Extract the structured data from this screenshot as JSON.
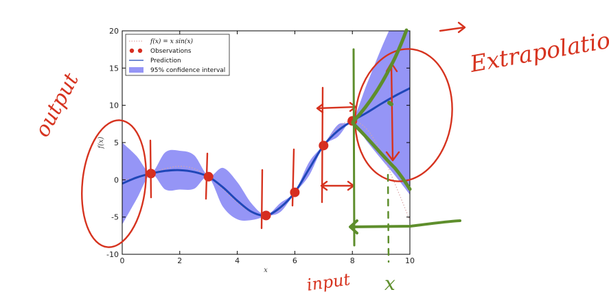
{
  "chart_data": {
    "type": "line",
    "title": "",
    "xlabel": "x",
    "ylabel": "f(x)",
    "xlim": [
      0,
      10
    ],
    "ylim": [
      -10,
      20
    ],
    "x_ticks": [
      "0",
      "2",
      "4",
      "6",
      "8",
      "10"
    ],
    "y_ticks": [
      "-10",
      "-5",
      "0",
      "5",
      "10",
      "15",
      "20"
    ],
    "legend": {
      "position": "top-left",
      "entries": [
        {
          "kind": "dotted-line",
          "label": "f(x) = x sin(x)"
        },
        {
          "kind": "markers",
          "label": "Observations"
        },
        {
          "kind": "line",
          "label": "Prediction"
        },
        {
          "kind": "band",
          "label": "95% confidence interval"
        }
      ]
    },
    "observations": {
      "x": [
        1,
        3,
        5,
        6,
        7,
        8
      ],
      "y": [
        0.84,
        0.42,
        -4.79,
        -1.68,
        4.6,
        7.91
      ]
    },
    "series": [
      {
        "name": "f(x) = x sin(x)",
        "style": "dotted",
        "x": [
          0,
          0.5,
          1,
          1.5,
          2,
          2.5,
          3,
          3.5,
          4,
          4.5,
          5,
          5.5,
          6,
          6.5,
          7,
          7.5,
          8,
          8.5,
          9,
          9.5,
          10
        ],
        "y": [
          0,
          0.24,
          0.84,
          1.5,
          1.82,
          1.5,
          0.42,
          -1.23,
          -3.03,
          -4.4,
          -4.79,
          -3.88,
          -1.68,
          1.39,
          4.6,
          7.04,
          7.91,
          6.8,
          3.71,
          -0.71,
          -5.44
        ]
      },
      {
        "name": "Prediction",
        "style": "solid",
        "x": [
          0,
          0.5,
          1,
          1.5,
          2,
          2.5,
          3,
          3.5,
          4,
          4.5,
          5,
          5.5,
          6,
          6.5,
          7,
          7.5,
          8,
          8.5,
          9,
          9.5,
          10
        ],
        "y": [
          -0.5,
          0.3,
          0.84,
          1.2,
          1.3,
          1.05,
          0.42,
          -1.0,
          -2.8,
          -4.3,
          -4.79,
          -3.7,
          -1.68,
          1.5,
          4.6,
          6.6,
          7.91,
          9.0,
          10.2,
          11.3,
          12.3
        ]
      }
    ],
    "confidence_interval": {
      "name": "95% confidence interval",
      "x": [
        0,
        0.5,
        1,
        1.5,
        2,
        2.5,
        3,
        3.5,
        4,
        4.5,
        5,
        5.5,
        6,
        6.5,
        7,
        7.5,
        8,
        8.5,
        9,
        9.5,
        10
      ],
      "lower": [
        -6.0,
        -2.6,
        0.74,
        -1.3,
        -1.3,
        -1.2,
        0.32,
        -3.6,
        -5.3,
        -5.4,
        -4.89,
        -4.3,
        -1.78,
        0.6,
        4.5,
        5.8,
        7.81,
        5.2,
        2.8,
        0.5,
        -2.0
      ],
      "upper": [
        5.0,
        3.2,
        0.94,
        3.7,
        3.9,
        3.3,
        0.52,
        1.6,
        -0.3,
        -3.2,
        -4.69,
        -3.1,
        -1.58,
        2.4,
        4.7,
        7.4,
        8.01,
        12.8,
        17.6,
        22.0,
        26.5
      ]
    },
    "colors": {
      "band": "#7b7bf4",
      "prediction": "#1f47b8",
      "observation": "#d62d20",
      "truth": "#d9a7a7",
      "ink_red": "#d6331f",
      "ink_green": "#5e8e2c"
    }
  },
  "annotations": {
    "output": "output",
    "extrapolation": "Extrapolation",
    "input": "input",
    "x_mark": "x"
  }
}
